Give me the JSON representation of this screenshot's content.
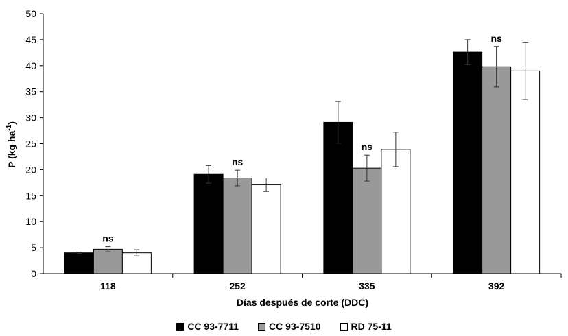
{
  "chart_data": {
    "type": "bar",
    "categories": [
      "118",
      "252",
      "335",
      "392"
    ],
    "xlabel": "Días después de corte (DDC)",
    "ylabel_main": "P (kg ha",
    "ylabel_sup": "-1",
    "ylabel_tail": ")",
    "ylim": [
      0,
      50
    ],
    "yticks": [
      "0",
      "5",
      "10",
      "15",
      "20",
      "25",
      "30",
      "35",
      "40",
      "45",
      "50"
    ],
    "grid": false,
    "legend_position": "bottom",
    "series": [
      {
        "name": "CC 93-7711",
        "color": "#000000",
        "values": [
          4.0,
          19.1,
          29.1,
          42.6
        ],
        "errors": [
          0.1,
          1.7,
          4.0,
          2.4
        ]
      },
      {
        "name": "CC 93-7510",
        "color": "#999999",
        "values": [
          4.7,
          18.4,
          20.3,
          39.8
        ],
        "errors": [
          0.5,
          1.5,
          2.5,
          3.9
        ]
      },
      {
        "name": "RD 75-11",
        "color": "#ffffff",
        "values": [
          4.0,
          17.1,
          23.9,
          39.0
        ],
        "errors": [
          0.6,
          1.3,
          3.3,
          5.5
        ]
      }
    ],
    "annotations": [
      "ns",
      "ns",
      "ns",
      "ns"
    ]
  }
}
